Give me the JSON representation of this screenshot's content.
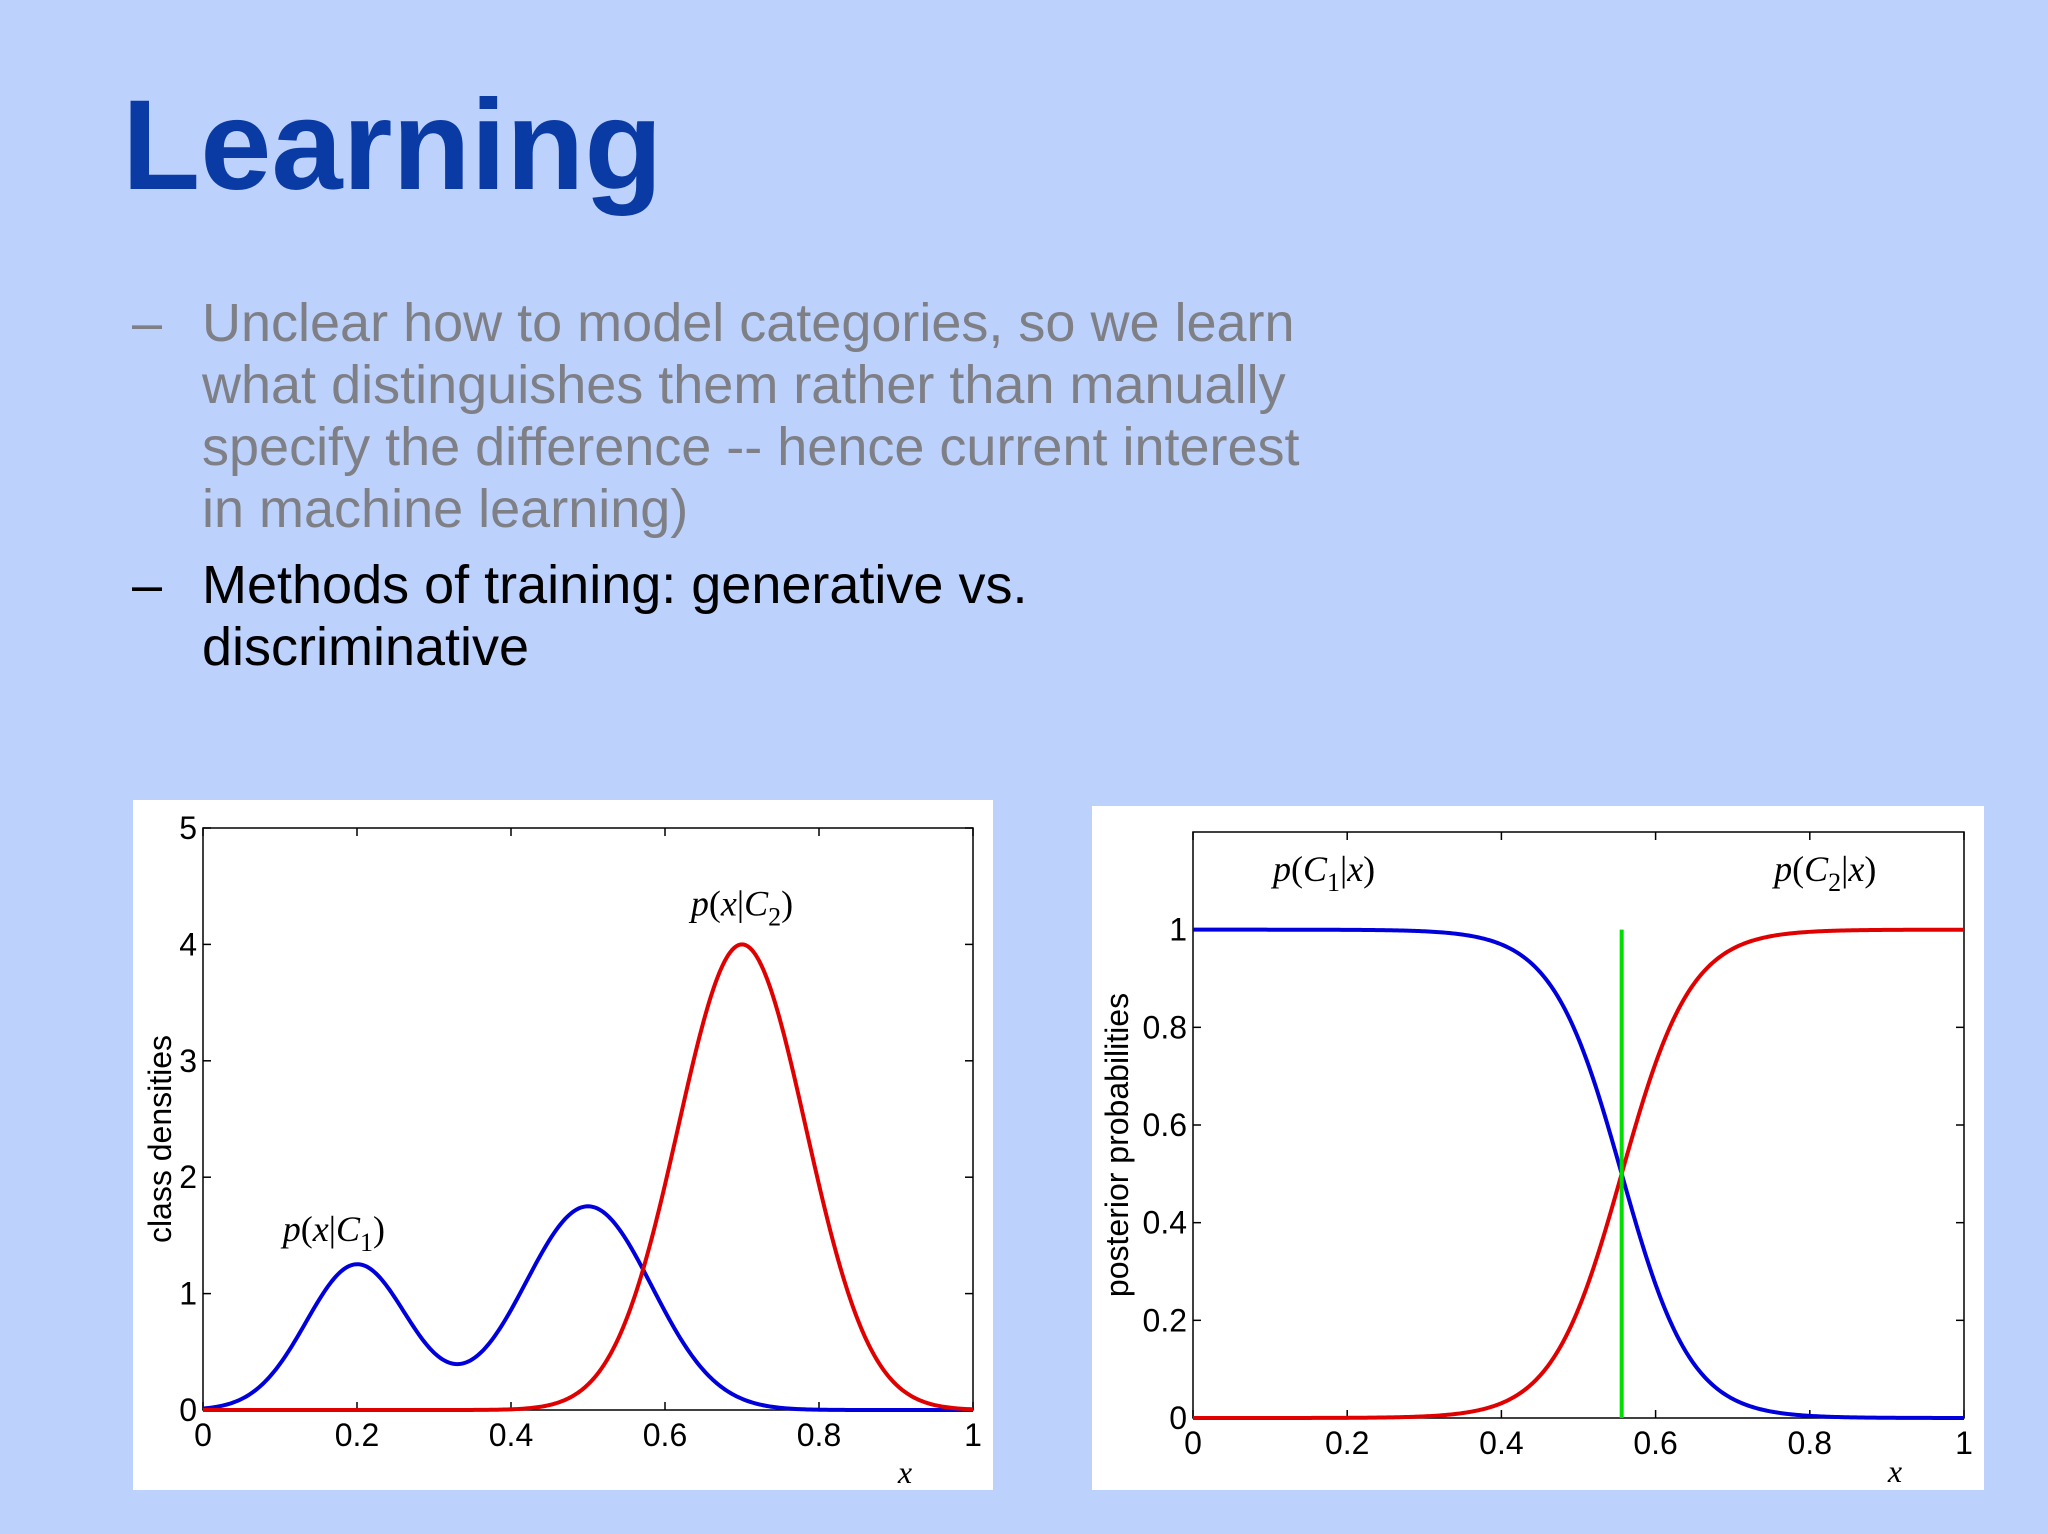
{
  "slide": {
    "title": "Learning",
    "bullets": [
      {
        "dash": "–",
        "text": "Unclear how to model categories, so we learn what distinguishes them rather than manually specify the difference -- hence current interest in machine learning)",
        "state": "dim"
      },
      {
        "dash": "–",
        "text": "Methods of training: generative vs. discriminative",
        "state": "active"
      }
    ]
  },
  "colors": {
    "background": "#bcd1fc",
    "title": "#0a3aa3",
    "dim_text": "#7f7f86",
    "blue": "#0000dd",
    "red": "#e00000",
    "green": "#00dd00"
  },
  "chart_data": [
    {
      "type": "line",
      "ylabel": "class densities",
      "xlabel": "x",
      "xlim": [
        0,
        1
      ],
      "ylim": [
        0,
        5
      ],
      "xticks": [
        "0",
        "0.2",
        "0.4",
        "0.6",
        "0.8",
        "1"
      ],
      "yticks": [
        "0",
        "1",
        "2",
        "3",
        "4",
        "5"
      ],
      "annotations": [
        {
          "p": "p",
          "open": "(",
          "var": "x",
          "bar": "|",
          "cls": "C",
          "sub": "1",
          "close": ")",
          "x": 0.17,
          "y": 1.45
        },
        {
          "p": "p",
          "open": "(",
          "var": "x",
          "bar": "|",
          "cls": "C",
          "sub": "2",
          "close": ")",
          "x": 0.7,
          "y": 4.25
        }
      ],
      "series": [
        {
          "color": "#0000dd",
          "components": [
            {
              "w": 1.25,
              "mu": 0.2,
              "sigma": 0.066
            },
            {
              "w": 1.75,
              "mu": 0.5,
              "sigma": 0.083
            }
          ]
        },
        {
          "color": "#e00000",
          "components": [
            {
              "w": 4.0,
              "mu": 0.7,
              "sigma": 0.083
            }
          ]
        }
      ]
    },
    {
      "type": "line",
      "ylabel": "posterior probabilities",
      "xlabel": "x",
      "xlim": [
        0,
        1
      ],
      "ylim": [
        0,
        1.2
      ],
      "xticks": [
        "0",
        "0.2",
        "0.4",
        "0.6",
        "0.8",
        "1"
      ],
      "yticks": [
        "0",
        "0.2",
        "0.4",
        "0.6",
        "0.8",
        "1"
      ],
      "annotations": [
        {
          "p": "p",
          "open": "(",
          "var": "",
          "bar": "",
          "cls": "C",
          "sub": "1",
          "tail": "|x",
          "close": ")",
          "x": 0.17,
          "y": 1.1
        },
        {
          "p": "p",
          "open": "(",
          "var": "",
          "bar": "",
          "cls": "C",
          "sub": "2",
          "tail": "|x",
          "close": ")",
          "x": 0.82,
          "y": 1.1
        }
      ],
      "decision_boundary_x": 0.556,
      "boundary_color": "#00dd00"
    }
  ]
}
